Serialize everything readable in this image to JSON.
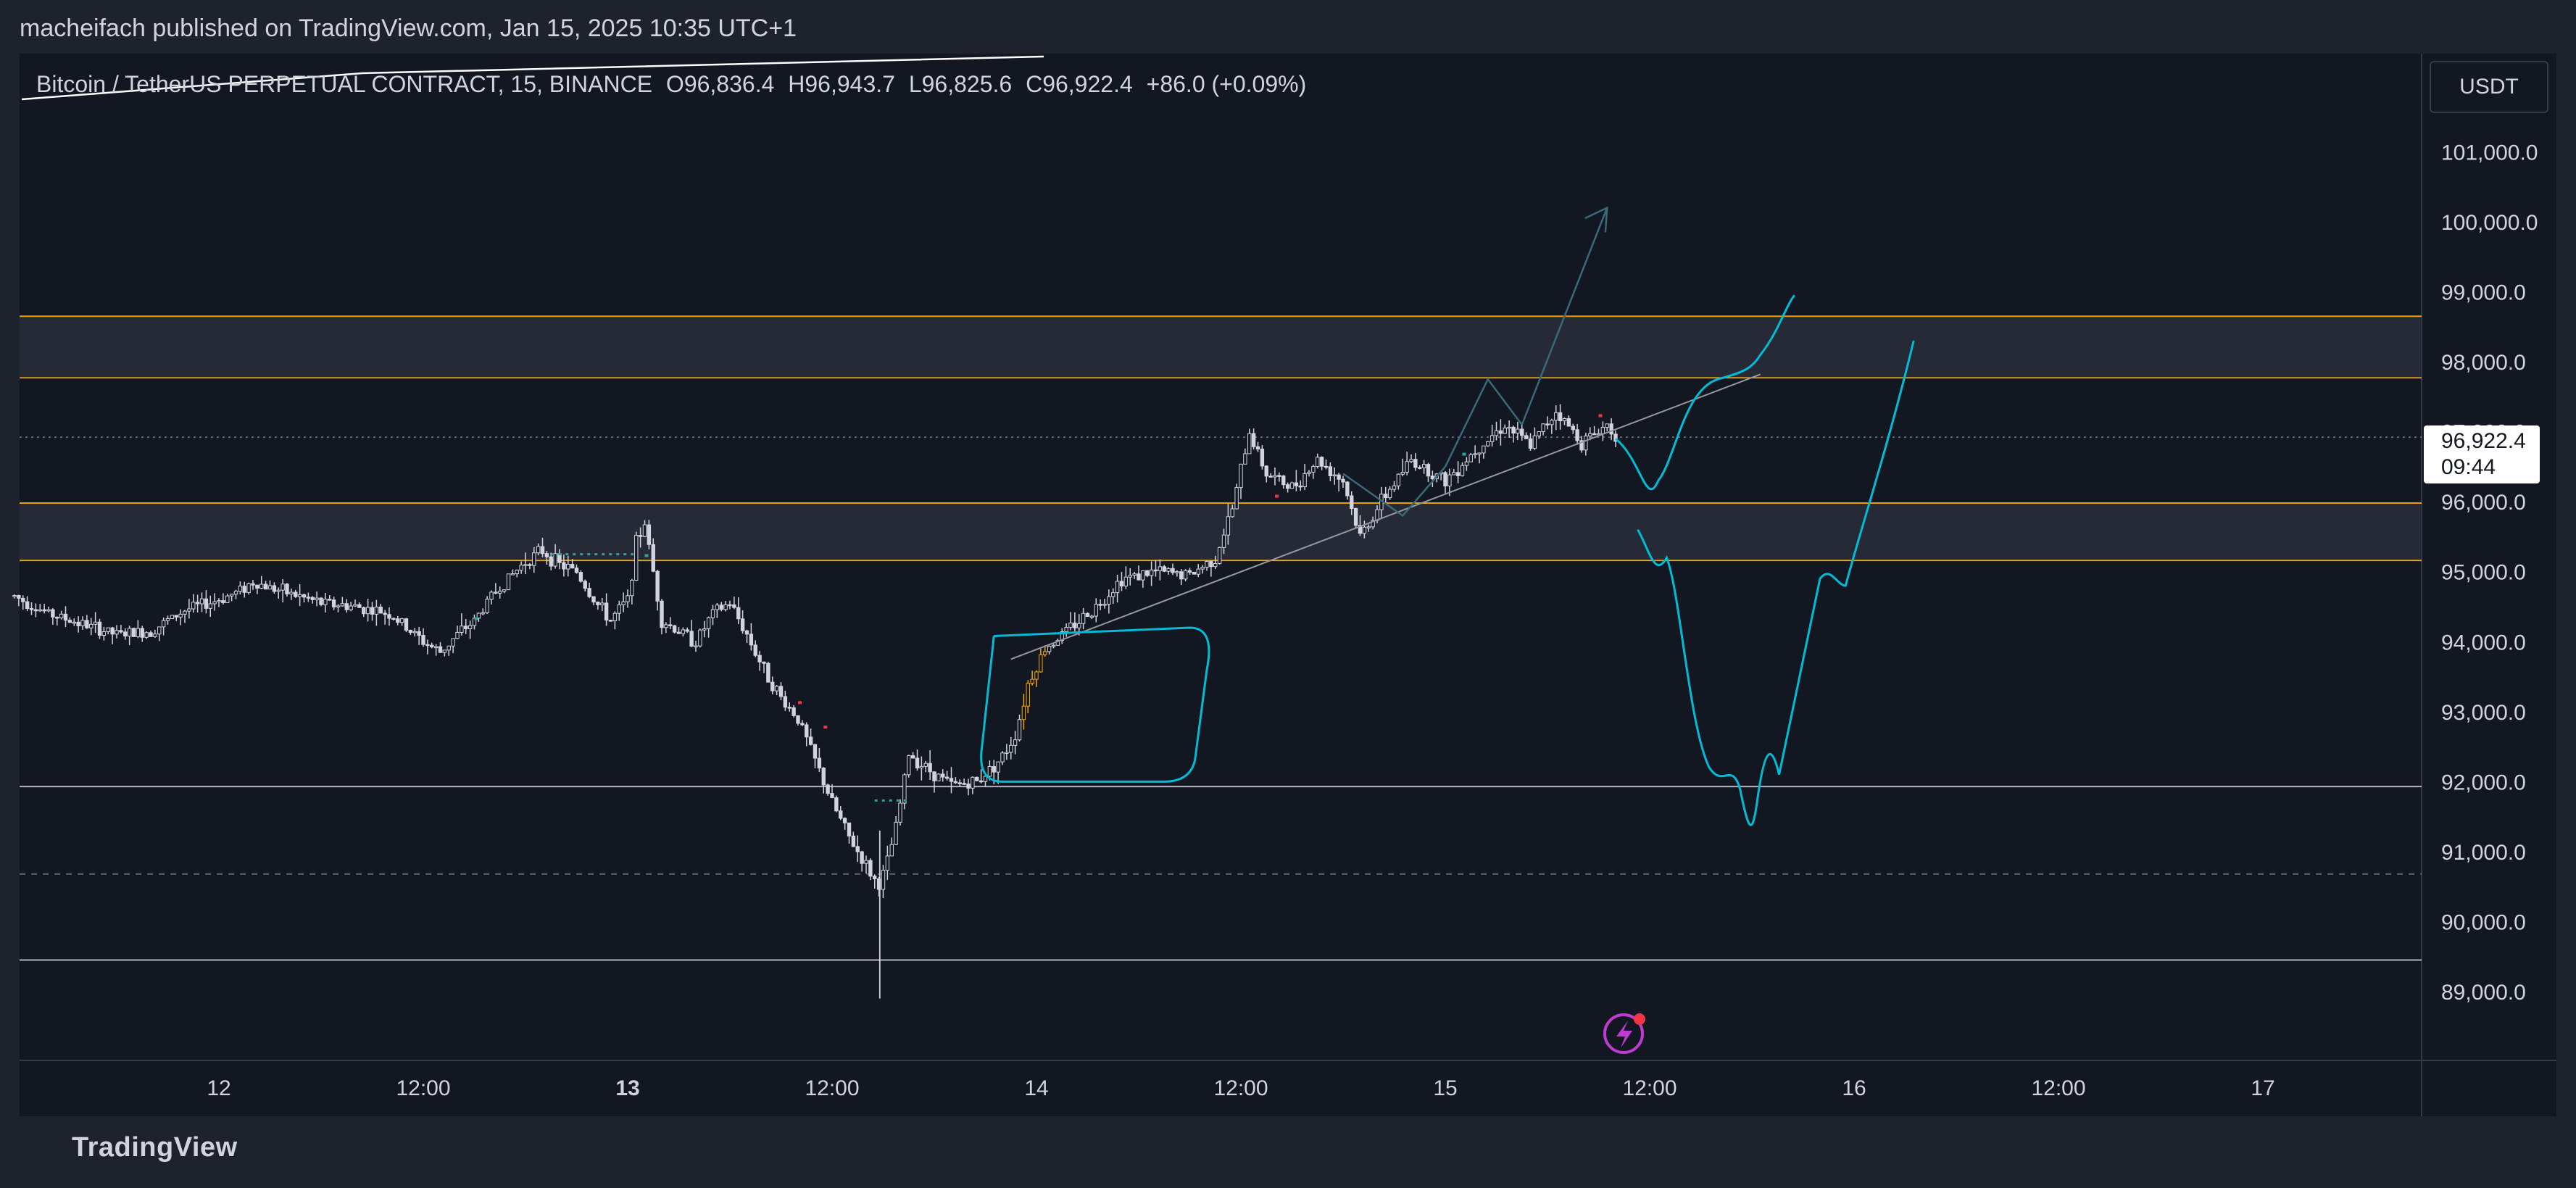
{
  "header": {
    "publish_title": "macheifach published on TradingView.com, Jan 15, 2025 10:35 UTC+1"
  },
  "legend": {
    "symbol": "Bitcoin / TetherUS PERPETUAL CONTRACT, 15, BINANCE",
    "open": "O96,836.4",
    "high": "H96,943.7",
    "low": "L96,825.6",
    "close": "C96,922.4",
    "change": "+86.0 (+0.09%)"
  },
  "price_axis": {
    "currency": "USDT"
  },
  "last_price": {
    "price": "96,922.4",
    "countdown": "09:44"
  },
  "footer": {
    "brand": "TradingView"
  },
  "colors": {
    "background": "#131722",
    "frame": "#1e222d",
    "candle": "#d1d4dc",
    "drawing": "#00bcd4",
    "zone_border": "#f7a600",
    "zone_fill": "#2a2e39",
    "arrow": "#3a6a78"
  },
  "chart_data": {
    "type": "candlestick",
    "symbol": "BTCUSDT.P",
    "timeframe": "15",
    "ylim": [
      88000,
      101800
    ],
    "y_ticks": [
      89000,
      90000,
      91000,
      92000,
      93000,
      94000,
      95000,
      96000,
      97000,
      98000,
      99000,
      100000,
      101000
    ],
    "x_range_hours": [
      -12,
      138
    ],
    "x_ticks": [
      {
        "label": "12",
        "t": 0,
        "bold": false
      },
      {
        "label": "12:00",
        "t": 12,
        "bold": false
      },
      {
        "label": "13",
        "t": 24,
        "bold": true
      },
      {
        "label": "12:00",
        "t": 36,
        "bold": false
      },
      {
        "label": "14",
        "t": 48,
        "bold": false
      },
      {
        "label": "12:00",
        "t": 60,
        "bold": false
      },
      {
        "label": "15",
        "t": 72,
        "bold": false
      },
      {
        "label": "12:00",
        "t": 84,
        "bold": false
      },
      {
        "label": "16",
        "t": 96,
        "bold": false
      },
      {
        "label": "12:00",
        "t": 108,
        "bold": false
      },
      {
        "label": "17",
        "t": 120,
        "bold": false
      }
    ],
    "price_path": [
      [
        -12,
        94650
      ],
      [
        -10,
        94400
      ],
      [
        -8,
        94250
      ],
      [
        -6,
        94100
      ],
      [
        -4,
        94150
      ],
      [
        -2,
        94450
      ],
      [
        0,
        94600
      ],
      [
        1,
        94700
      ],
      [
        2,
        94850
      ],
      [
        4,
        94700
      ],
      [
        6,
        94550
      ],
      [
        8,
        94500
      ],
      [
        10,
        94400
      ],
      [
        11,
        94200
      ],
      [
        12,
        94000
      ],
      [
        13,
        93850
      ],
      [
        14,
        94100
      ],
      [
        15,
        94300
      ],
      [
        16,
        94650
      ],
      [
        17,
        94900
      ],
      [
        18,
        95150
      ],
      [
        19,
        95300
      ],
      [
        20,
        95100
      ],
      [
        21,
        95000
      ],
      [
        22,
        94600
      ],
      [
        23,
        94300
      ],
      [
        24,
        94600
      ],
      [
        24.5,
        95400
      ],
      [
        25,
        95700
      ],
      [
        25.5,
        95000
      ],
      [
        26,
        94300
      ],
      [
        27,
        94150
      ],
      [
        28,
        94000
      ],
      [
        29,
        94400
      ],
      [
        30,
        94550
      ],
      [
        31,
        94100
      ],
      [
        32,
        93600
      ],
      [
        33,
        93200
      ],
      [
        34,
        92900
      ],
      [
        35,
        92300
      ],
      [
        36,
        91700
      ],
      [
        37,
        91200
      ],
      [
        38,
        90800
      ],
      [
        38.7,
        90500
      ],
      [
        39.2,
        90800
      ],
      [
        39.8,
        91400
      ],
      [
        40.5,
        92400
      ],
      [
        41.5,
        92200
      ],
      [
        43,
        91950
      ],
      [
        44.5,
        92000
      ],
      [
        46,
        92350
      ],
      [
        46.8,
        92700
      ],
      [
        47.5,
        93400
      ],
      [
        48.5,
        93900
      ],
      [
        50,
        94200
      ],
      [
        51.5,
        94500
      ],
      [
        53,
        94900
      ],
      [
        55,
        95000
      ],
      [
        57,
        94950
      ],
      [
        58.5,
        95200
      ],
      [
        59.5,
        95900
      ],
      [
        60.5,
        97000
      ],
      [
        61.5,
        96400
      ],
      [
        63,
        96200
      ],
      [
        64.5,
        96600
      ],
      [
        66,
        96300
      ],
      [
        67,
        95500
      ],
      [
        68.5,
        96100
      ],
      [
        70,
        96600
      ],
      [
        72,
        96300
      ],
      [
        74,
        96800
      ],
      [
        75.5,
        97100
      ],
      [
        77,
        96800
      ],
      [
        78.5,
        97300
      ],
      [
        80,
        96850
      ],
      [
        81.5,
        97100
      ],
      [
        82.2,
        96920
      ]
    ],
    "wick_low": {
      "t": 38.8,
      "price": 88900
    },
    "horizontal_levels": [
      {
        "price": 98650,
        "style": "zone-top"
      },
      {
        "price": 97770,
        "style": "zone-bottom"
      },
      {
        "price": 95980,
        "style": "zone-top"
      },
      {
        "price": 95160,
        "style": "zone-bottom"
      },
      {
        "price": 91930,
        "style": "solid"
      },
      {
        "price": 90680,
        "style": "dashed"
      },
      {
        "price": 89450,
        "style": "solid"
      }
    ],
    "last_close": 96922.4
  }
}
